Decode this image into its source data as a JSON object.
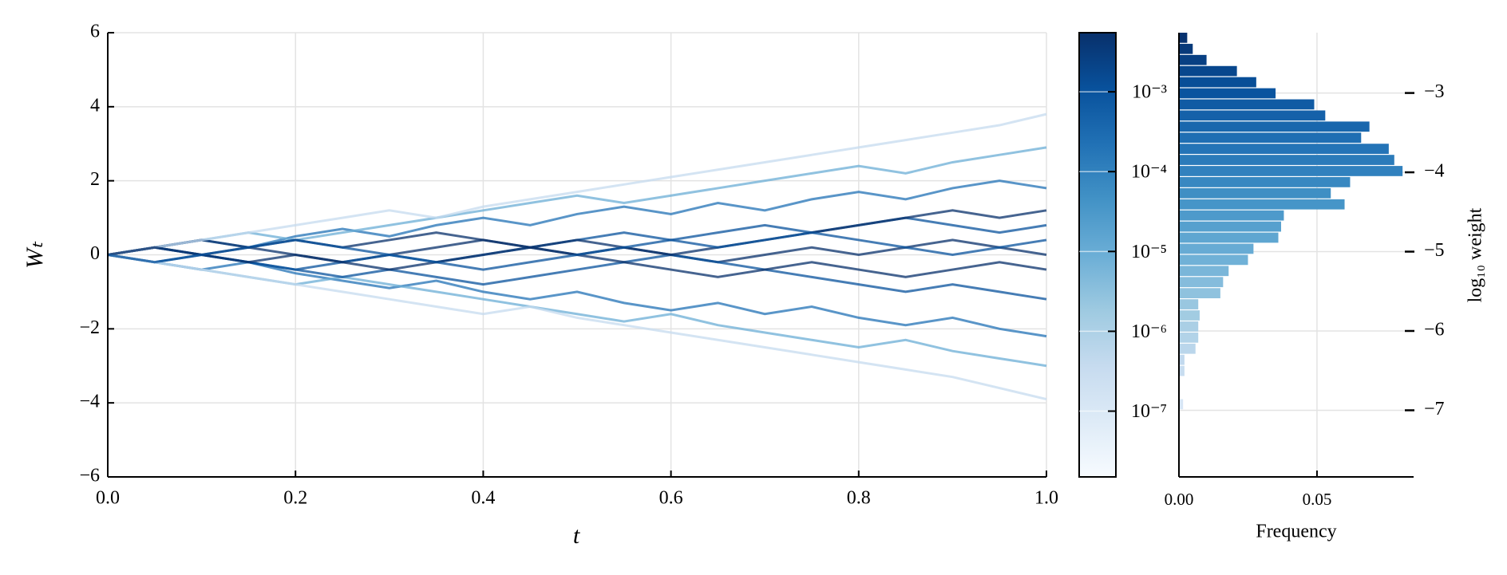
{
  "chart_data": [
    {
      "type": "line",
      "xlabel": "t",
      "ylabel": "Wₜ",
      "x": [
        0,
        0.05,
        0.1,
        0.15,
        0.2,
        0.25,
        0.3,
        0.35,
        0.4,
        0.45,
        0.5,
        0.55,
        0.6,
        0.65,
        0.7,
        0.75,
        0.8,
        0.85,
        0.9,
        0.95,
        1.0
      ],
      "series": [
        {
          "color": "#2171b5",
          "values": [
            0,
            0.2,
            0.4,
            0.2,
            0.5,
            0.7,
            0.5,
            0.8,
            1.0,
            0.8,
            1.1,
            1.3,
            1.1,
            1.4,
            1.2,
            1.5,
            1.7,
            1.5,
            1.8,
            2.0,
            1.8
          ]
        },
        {
          "color": "#2171b5",
          "values": [
            0,
            -0.2,
            -0.4,
            -0.2,
            -0.5,
            -0.7,
            -0.9,
            -0.7,
            -1.0,
            -1.2,
            -1.0,
            -1.3,
            -1.5,
            -1.3,
            -1.6,
            -1.4,
            -1.7,
            -1.9,
            -1.7,
            -2.0,
            -2.2
          ]
        },
        {
          "color": "#08306b",
          "values": [
            0,
            0.2,
            0,
            0.2,
            0,
            -0.2,
            0,
            0.2,
            0.4,
            0.2,
            0,
            0.2,
            0,
            -0.2,
            0,
            0.2,
            0,
            0.2,
            0.4,
            0.2,
            0
          ]
        },
        {
          "color": "#08519c",
          "values": [
            0,
            -0.2,
            0,
            -0.2,
            -0.4,
            -0.2,
            0,
            -0.2,
            0,
            0.2,
            0.4,
            0.6,
            0.4,
            0.6,
            0.8,
            0.6,
            0.8,
            1.0,
            0.8,
            0.6,
            0.8
          ]
        },
        {
          "color": "#6baed6",
          "values": [
            0,
            0.2,
            0.4,
            0.6,
            0.4,
            0.6,
            0.8,
            1.0,
            1.2,
            1.4,
            1.6,
            1.4,
            1.6,
            1.8,
            2.0,
            2.2,
            2.4,
            2.2,
            2.5,
            2.7,
            2.9
          ]
        },
        {
          "color": "#6baed6",
          "values": [
            0,
            -0.2,
            -0.4,
            -0.6,
            -0.8,
            -0.6,
            -0.8,
            -1.0,
            -1.2,
            -1.4,
            -1.6,
            -1.8,
            -1.6,
            -1.9,
            -2.1,
            -2.3,
            -2.5,
            -2.3,
            -2.6,
            -2.8,
            -3.0
          ]
        },
        {
          "color": "#08519c",
          "values": [
            0,
            0.2,
            0,
            -0.2,
            -0.4,
            -0.6,
            -0.4,
            -0.6,
            -0.8,
            -0.6,
            -0.4,
            -0.2,
            0,
            -0.2,
            -0.4,
            -0.6,
            -0.8,
            -1.0,
            -0.8,
            -1.0,
            -1.2
          ]
        },
        {
          "color": "#08306b",
          "values": [
            0,
            0.2,
            0.4,
            0.2,
            0.4,
            0.2,
            0.4,
            0.6,
            0.4,
            0.2,
            0.4,
            0.2,
            0,
            0.2,
            0.4,
            0.6,
            0.8,
            1.0,
            1.2,
            1.0,
            1.2
          ]
        },
        {
          "color": "#c6dbef",
          "values": [
            0,
            0.2,
            0.4,
            0.6,
            0.8,
            1.0,
            1.2,
            1.0,
            1.3,
            1.5,
            1.7,
            1.9,
            2.1,
            2.3,
            2.5,
            2.7,
            2.9,
            3.1,
            3.3,
            3.5,
            3.8
          ]
        },
        {
          "color": "#c6dbef",
          "values": [
            0,
            -0.2,
            -0.4,
            -0.6,
            -0.8,
            -1.0,
            -1.2,
            -1.4,
            -1.6,
            -1.4,
            -1.7,
            -1.9,
            -2.1,
            -2.3,
            -2.5,
            -2.7,
            -2.9,
            -3.1,
            -3.3,
            -3.6,
            -3.9
          ]
        },
        {
          "color": "#08306b",
          "values": [
            0,
            0.2,
            0,
            -0.2,
            0,
            -0.2,
            -0.4,
            -0.2,
            0,
            0.2,
            0,
            -0.2,
            -0.4,
            -0.6,
            -0.4,
            -0.2,
            -0.4,
            -0.6,
            -0.4,
            -0.2,
            -0.4
          ]
        },
        {
          "color": "#08519c",
          "values": [
            0,
            -0.2,
            0,
            0.2,
            0.4,
            0.2,
            0,
            -0.2,
            -0.4,
            -0.2,
            0,
            0.2,
            0.4,
            0.2,
            0.4,
            0.6,
            0.4,
            0.2,
            0,
            0.2,
            0.4
          ]
        }
      ],
      "xlim": [
        0,
        1
      ],
      "xticks": [
        {
          "value": 0,
          "label": "0.0"
        },
        0.2,
        0.4,
        0.6,
        0.8,
        {
          "value": 1,
          "label": "1.0"
        }
      ],
      "ylim": [
        -6,
        6
      ],
      "yticks": [
        {
          "value": -6,
          "label": "−6"
        },
        {
          "value": -4,
          "label": "−4"
        },
        {
          "value": -2,
          "label": "−2"
        },
        0,
        2,
        4,
        6
      ],
      "grid": true
    },
    {
      "type": "colorbar",
      "log": true,
      "ylim": [
        1.5e-08,
        0.0055
      ],
      "colormap": [
        "#f7fbff",
        "#deebf7",
        "#c6dbef",
        "#9ecae1",
        "#6baed6",
        "#4292c6",
        "#2171b5",
        "#08519c",
        "#08306b"
      ],
      "yticks": [
        {
          "value": 1e-07,
          "label": "10⁻⁷"
        },
        {
          "value": 1e-06,
          "label": "10⁻⁶"
        },
        {
          "value": 1e-05,
          "label": "10⁻⁵"
        },
        {
          "value": 0.0001,
          "label": "10⁻⁴"
        },
        {
          "value": 0.001,
          "label": "10⁻³"
        }
      ]
    },
    {
      "type": "histogram",
      "orientation": "horizontal",
      "xlabel": "Frequency",
      "ylabel": "log₁₀ weight",
      "bins": [
        -7,
        -6.86,
        -6.72,
        -6.58,
        -6.44,
        -6.3,
        -6.16,
        -6.02,
        -5.88,
        -5.74,
        -5.6,
        -5.46,
        -5.32,
        -5.18,
        -5.04,
        -4.9,
        -4.76,
        -4.62,
        -4.48,
        -4.34,
        -4.2,
        -4.06,
        -3.92,
        -3.78,
        -3.64,
        -3.5,
        -3.36,
        -3.22,
        -3.08,
        -2.94,
        -2.8,
        -2.66,
        -2.52,
        -2.38,
        -2.24
      ],
      "values": [
        0.0015,
        0,
        0,
        0.002,
        0.002,
        0.006,
        0.007,
        0.007,
        0.0075,
        0.007,
        0.015,
        0.016,
        0.018,
        0.025,
        0.027,
        0.036,
        0.037,
        0.038,
        0.06,
        0.055,
        0.062,
        0.081,
        0.078,
        0.076,
        0.066,
        0.069,
        0.053,
        0.049,
        0.035,
        0.028,
        0.021,
        0.01,
        0.005,
        0.003
      ],
      "xlim": [
        0,
        0.085
      ],
      "xticks": [
        {
          "value": 0,
          "label": "0.00"
        },
        {
          "value": 0.05,
          "label": "0.05"
        }
      ],
      "ylim": [
        -7.84,
        -2.24
      ],
      "yticks": [
        {
          "value": -7,
          "label": "−7"
        },
        {
          "value": -6,
          "label": "−6"
        },
        {
          "value": -5,
          "label": "−5"
        },
        {
          "value": -4,
          "label": "−4"
        },
        {
          "value": -3,
          "label": "−3"
        }
      ],
      "grid": true
    }
  ]
}
